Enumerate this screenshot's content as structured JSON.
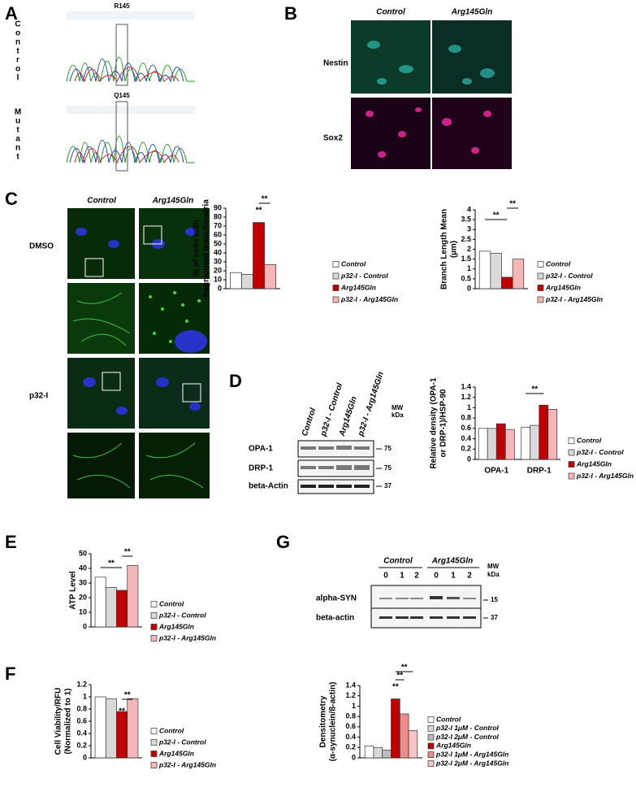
{
  "panels": {
    "A": {
      "label": "A",
      "control_letters": [
        "C",
        "o",
        "n",
        "t",
        "r",
        "o",
        "l"
      ],
      "mutant_letters": [
        "M",
        "u",
        "t",
        "a",
        "n",
        "t"
      ],
      "top_site": "R145",
      "bottom_site": "Q145"
    },
    "B": {
      "label": "B",
      "columns": [
        "Control",
        "Arg145Gln"
      ],
      "rows": [
        "Nestin",
        "Sox2"
      ]
    },
    "C": {
      "label": "C",
      "columns": [
        "Control",
        "Arg145Gln"
      ],
      "rows": [
        "DMSO",
        "p32-I"
      ]
    },
    "D": {
      "label": "D",
      "lanes": [
        "Control",
        "p32-I - Control",
        "Arg145Gln",
        "p32-I - Arg145Gln"
      ],
      "bands": [
        "OPA-1",
        "DRP-1",
        "beta-Actin"
      ],
      "mw": [
        "MW",
        "kDa"
      ],
      "markers": [
        "75",
        "75",
        "37"
      ]
    },
    "E": {
      "label": "E"
    },
    "F": {
      "label": "F"
    },
    "G": {
      "label": "G",
      "groups": [
        "Control",
        "Arg145Gln"
      ],
      "lanes": [
        "0",
        "1",
        "2",
        "0",
        "1",
        "2"
      ],
      "bands": [
        "alpha-SYN",
        "beta-actin"
      ],
      "mw": [
        "MW",
        "kDa"
      ],
      "markers": [
        "15",
        "37"
      ]
    }
  },
  "chart_data": [
    {
      "type": "bar",
      "ylabel": [
        "% of cells with",
        "fragmented mitochondria"
      ],
      "ylim": [
        0,
        90
      ],
      "yticks": [
        0,
        10,
        20,
        30,
        40,
        50,
        60,
        70,
        80,
        90
      ],
      "series": [
        {
          "name": "Control",
          "color": "#ffffff",
          "values": [
            18
          ]
        },
        {
          "name": "p32-I - Control",
          "color": "#d9d9d9",
          "values": [
            16
          ]
        },
        {
          "name": "Arg145Gln",
          "color": "#c00000",
          "values": [
            74
          ]
        },
        {
          "name": "p32-I - Arg145Gln",
          "color": "#f4b6b6",
          "values": [
            27
          ]
        }
      ],
      "annotations": [
        "**",
        "**"
      ]
    },
    {
      "type": "bar",
      "ylabel": [
        "Branch Length Mean",
        "(µm)"
      ],
      "ylim": [
        0,
        4
      ],
      "yticks": [
        0,
        0.5,
        1,
        1.5,
        2,
        2.5,
        3,
        3.5,
        4
      ],
      "series": [
        {
          "name": "Control",
          "color": "#ffffff",
          "values": [
            1.9
          ]
        },
        {
          "name": "p32-I - Control",
          "color": "#d9d9d9",
          "values": [
            1.8
          ]
        },
        {
          "name": "Arg145Gln",
          "color": "#c00000",
          "values": [
            0.58
          ]
        },
        {
          "name": "p32-I - Arg145Gln",
          "color": "#f4b6b6",
          "values": [
            1.5
          ]
        }
      ],
      "annotations": [
        "**",
        "**"
      ]
    },
    {
      "type": "bar",
      "ylabel": [
        "Relative density (OPA-1",
        "or DRP-1)/HSP-90"
      ],
      "categories": [
        "OPA-1",
        "DRP-1"
      ],
      "ylim": [
        0,
        1.4
      ],
      "yticks": [
        0,
        0.2,
        0.4,
        0.6,
        0.8,
        1,
        1.2,
        1.4
      ],
      "series": [
        {
          "name": "Control",
          "color": "#ffffff",
          "values": [
            0.6,
            0.62
          ]
        },
        {
          "name": "p32-I - Control",
          "color": "#d9d9d9",
          "values": [
            0.6,
            0.66
          ]
        },
        {
          "name": "Arg145Gln",
          "color": "#c00000",
          "values": [
            0.69,
            1.05
          ]
        },
        {
          "name": "p32-I - Arg145Gln",
          "color": "#f4b6b6",
          "values": [
            0.58,
            0.97
          ]
        }
      ],
      "annotations": [
        "**"
      ]
    },
    {
      "type": "bar",
      "ylabel": [
        "ATP Level"
      ],
      "ylim": [
        0,
        50
      ],
      "yticks": [
        0,
        10,
        20,
        30,
        40,
        50
      ],
      "series": [
        {
          "name": "Control",
          "color": "#ffffff",
          "values": [
            34
          ]
        },
        {
          "name": "p32-I - Control",
          "color": "#d9d9d9",
          "values": [
            27
          ]
        },
        {
          "name": "Arg145Gln",
          "color": "#c00000",
          "values": [
            25
          ]
        },
        {
          "name": "p32-I - Arg145Gln",
          "color": "#f4b6b6",
          "values": [
            42
          ]
        }
      ],
      "annotations": [
        "**",
        "**"
      ]
    },
    {
      "type": "bar",
      "ylabel": [
        "Cell Viability/RFU",
        "(Normalized to 1)"
      ],
      "ylim": [
        0,
        1.2
      ],
      "yticks": [
        0,
        0.2,
        0.4,
        0.6,
        0.8,
        1,
        1.2
      ],
      "series": [
        {
          "name": "Control",
          "color": "#ffffff",
          "values": [
            1
          ]
        },
        {
          "name": "p32-I - Control",
          "color": "#d9d9d9",
          "values": [
            0.97
          ]
        },
        {
          "name": "Arg145Gln",
          "color": "#c00000",
          "values": [
            0.76
          ]
        },
        {
          "name": "p32-I - Arg145Gln",
          "color": "#f4b6b6",
          "values": [
            0.97
          ]
        }
      ],
      "annotations": [
        "**",
        "**"
      ]
    },
    {
      "type": "bar",
      "ylabel": [
        "Densitometry",
        "(α-synuclein/ß-actin)"
      ],
      "ylim": [
        0,
        1.4
      ],
      "yticks": [
        0,
        0.2,
        0.4,
        0.6,
        0.8,
        1,
        1.2,
        1.4
      ],
      "series": [
        {
          "name": "Control",
          "color": "#ffffff",
          "values": [
            0.23
          ]
        },
        {
          "name": "p32-I 1μM - Control",
          "color": "#d9d9d9",
          "values": [
            0.2
          ]
        },
        {
          "name": "p32-I 2μM - Control",
          "color": "#bdbdbd",
          "values": [
            0.15
          ]
        },
        {
          "name": "Arg145Gln",
          "color": "#c00000",
          "values": [
            1.14
          ]
        },
        {
          "name": "p32-I 1μM - Arg145Gln",
          "color": "#f08a8a",
          "values": [
            0.85
          ]
        },
        {
          "name": "p32-I 2μM - Arg145Gln",
          "color": "#f7c4c4",
          "values": [
            0.53
          ]
        }
      ],
      "annotations": [
        "**",
        "**",
        "**"
      ]
    }
  ]
}
